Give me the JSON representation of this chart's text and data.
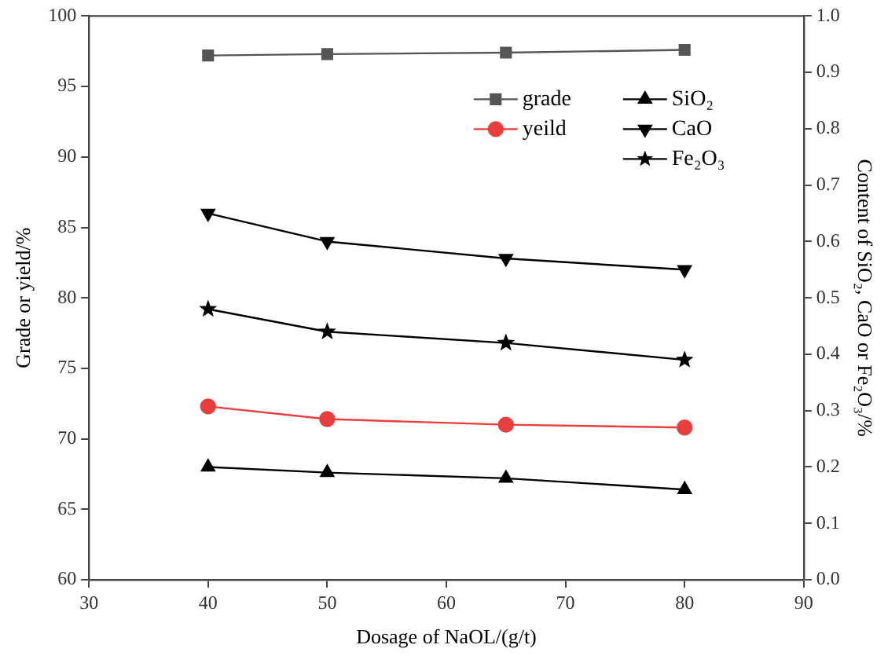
{
  "chart_data": {
    "type": "line",
    "xlabel": "Dosage of NaOL/(g/t)",
    "ylabel": "Grade or yield/%",
    "y2label": "Content of SiO₂, CaO or Fe₂O₃/%",
    "x": [
      40,
      50,
      65,
      80
    ],
    "series": [
      {
        "name": "grade",
        "color": "#555555",
        "marker": "square",
        "values": [
          97.2,
          97.3,
          97.4,
          97.6
        ]
      },
      {
        "name": "yeild",
        "color": "#e83e3e",
        "marker": "circle",
        "values": [
          72.3,
          71.4,
          71.0,
          70.8
        ]
      },
      {
        "name": "SiO₂",
        "color": "#000000",
        "marker": "triangle",
        "axis": "y2",
        "values": [
          0.2,
          0.19,
          0.18,
          0.16
        ]
      },
      {
        "name": "CaO",
        "color": "#000000",
        "marker": "triangle-down",
        "axis": "y2",
        "values": [
          0.65,
          0.6,
          0.57,
          0.55
        ]
      },
      {
        "name": "Fe₂O₃",
        "color": "#000000",
        "marker": "star",
        "axis": "y2",
        "values": [
          0.48,
          0.44,
          0.42,
          0.39
        ]
      }
    ],
    "xlim": [
      30,
      90
    ],
    "xticks": [
      30,
      40,
      50,
      60,
      70,
      80,
      90
    ],
    "ylim": [
      60,
      100
    ],
    "yticks": [
      60,
      65,
      70,
      75,
      80,
      85,
      90,
      95,
      100
    ],
    "y2lim": [
      0,
      1
    ],
    "y2ticks": [
      {
        "value": 0,
        "label": "0.0"
      },
      {
        "value": 0.1,
        "label": "0.1"
      },
      {
        "value": 0.2,
        "label": "0.2"
      },
      {
        "value": 0.3,
        "label": "0.3"
      },
      {
        "value": 0.4,
        "label": "0.4"
      },
      {
        "value": 0.5,
        "label": "0.5"
      },
      {
        "value": 0.6,
        "label": "0.6"
      },
      {
        "value": 0.7,
        "label": "0.7"
      },
      {
        "value": 0.8,
        "label": "0.8"
      },
      {
        "value": 0.9,
        "label": "0.9"
      },
      {
        "value": 1,
        "label": "1.0"
      }
    ],
    "grid": false,
    "legend": "top right",
    "line_style": "solid"
  }
}
